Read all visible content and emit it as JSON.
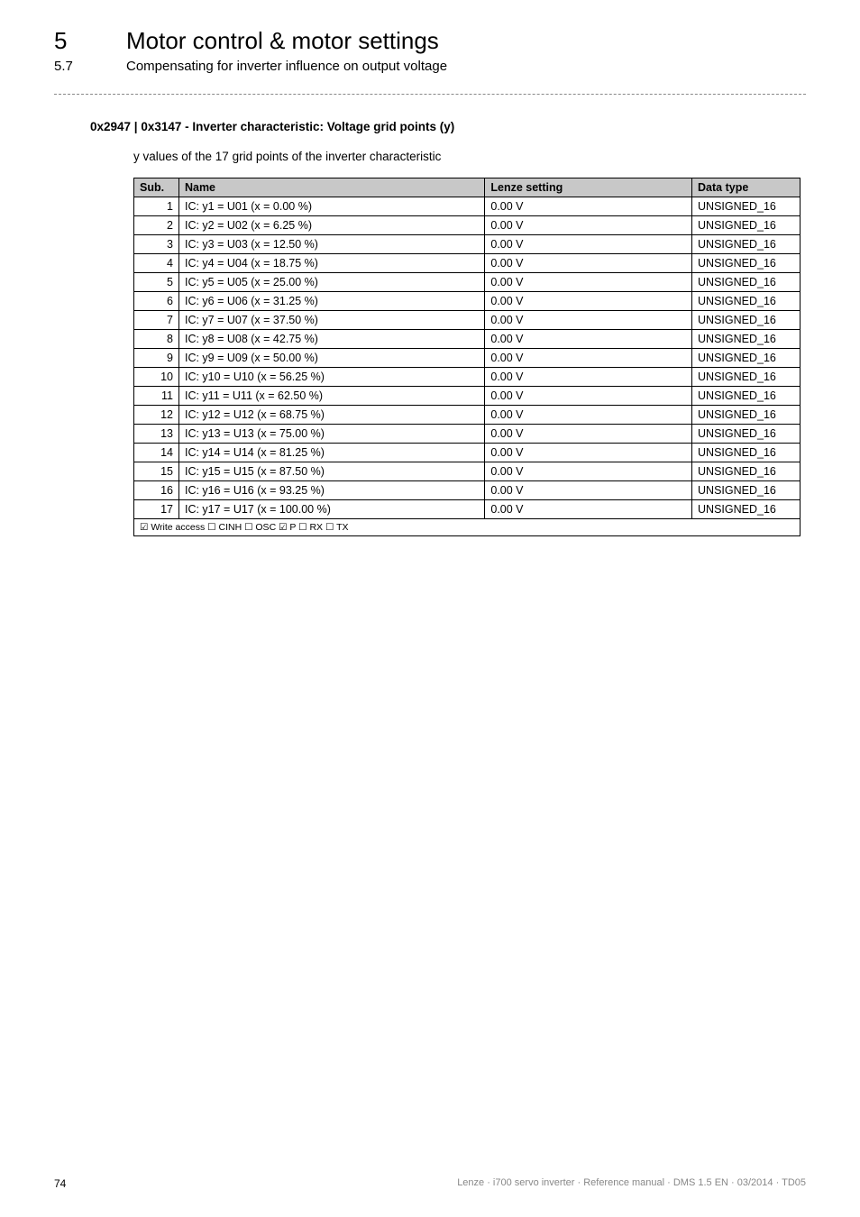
{
  "header": {
    "chapter_num": "5",
    "chapter_title": "Motor control & motor settings",
    "section_num": "5.7",
    "section_title": "Compensating for inverter influence on output voltage"
  },
  "param": {
    "heading": "0x2947 | 0x3147 - Inverter characteristic: Voltage grid points (y)",
    "description": "y values of the 17 grid points of the inverter characteristic"
  },
  "table": {
    "columns": [
      "Sub.",
      "Name",
      "Lenze setting",
      "Data type"
    ],
    "rows": [
      {
        "sub": "1",
        "name": "IC: y1 = U01 (x = 0.00 %)",
        "lenze": "0.00 V",
        "dtype": "UNSIGNED_16"
      },
      {
        "sub": "2",
        "name": "IC: y2 = U02 (x = 6.25 %)",
        "lenze": "0.00 V",
        "dtype": "UNSIGNED_16"
      },
      {
        "sub": "3",
        "name": "IC: y3 = U03 (x = 12.50 %)",
        "lenze": "0.00 V",
        "dtype": "UNSIGNED_16"
      },
      {
        "sub": "4",
        "name": "IC: y4 = U04 (x = 18.75 %)",
        "lenze": "0.00 V",
        "dtype": "UNSIGNED_16"
      },
      {
        "sub": "5",
        "name": "IC: y5 = U05 (x = 25.00 %)",
        "lenze": "0.00 V",
        "dtype": "UNSIGNED_16"
      },
      {
        "sub": "6",
        "name": "IC: y6 = U06 (x = 31.25 %)",
        "lenze": "0.00 V",
        "dtype": "UNSIGNED_16"
      },
      {
        "sub": "7",
        "name": "IC: y7 = U07 (x = 37.50 %)",
        "lenze": "0.00 V",
        "dtype": "UNSIGNED_16"
      },
      {
        "sub": "8",
        "name": "IC: y8 = U08 (x = 42.75 %)",
        "lenze": "0.00 V",
        "dtype": "UNSIGNED_16"
      },
      {
        "sub": "9",
        "name": "IC: y9 = U09 (x = 50.00 %)",
        "lenze": "0.00 V",
        "dtype": "UNSIGNED_16"
      },
      {
        "sub": "10",
        "name": "IC: y10 = U10 (x = 56.25 %)",
        "lenze": "0.00 V",
        "dtype": "UNSIGNED_16"
      },
      {
        "sub": "11",
        "name": "IC: y11 = U11 (x = 62.50 %)",
        "lenze": "0.00 V",
        "dtype": "UNSIGNED_16"
      },
      {
        "sub": "12",
        "name": "IC: y12 = U12 (x = 68.75 %)",
        "lenze": "0.00 V",
        "dtype": "UNSIGNED_16"
      },
      {
        "sub": "13",
        "name": "IC: y13 = U13 (x = 75.00 %)",
        "lenze": "0.00 V",
        "dtype": "UNSIGNED_16"
      },
      {
        "sub": "14",
        "name": "IC: y14 = U14 (x = 81.25 %)",
        "lenze": "0.00 V",
        "dtype": "UNSIGNED_16"
      },
      {
        "sub": "15",
        "name": "IC: y15 = U15 (x = 87.50 %)",
        "lenze": "0.00 V",
        "dtype": "UNSIGNED_16"
      },
      {
        "sub": "16",
        "name": "IC: y16 = U16 (x = 93.25 %)",
        "lenze": "0.00 V",
        "dtype": "UNSIGNED_16"
      },
      {
        "sub": "17",
        "name": "IC: y17 = U17 (x = 100.00 %)",
        "lenze": "0.00 V",
        "dtype": "UNSIGNED_16"
      }
    ],
    "footer_flags": "☑ Write access   ☐ CINH   ☐ OSC   ☑ P   ☐ RX   ☐ TX"
  },
  "footer": {
    "page_num": "74",
    "text": "Lenze · i700 servo inverter · Reference manual · DMS 1.5 EN · 03/2014 · TD05"
  },
  "styles": {
    "header_bg": "#c8c8c8",
    "border_color": "#000000",
    "body_font_size": 13,
    "table_font_size": 12.5
  }
}
